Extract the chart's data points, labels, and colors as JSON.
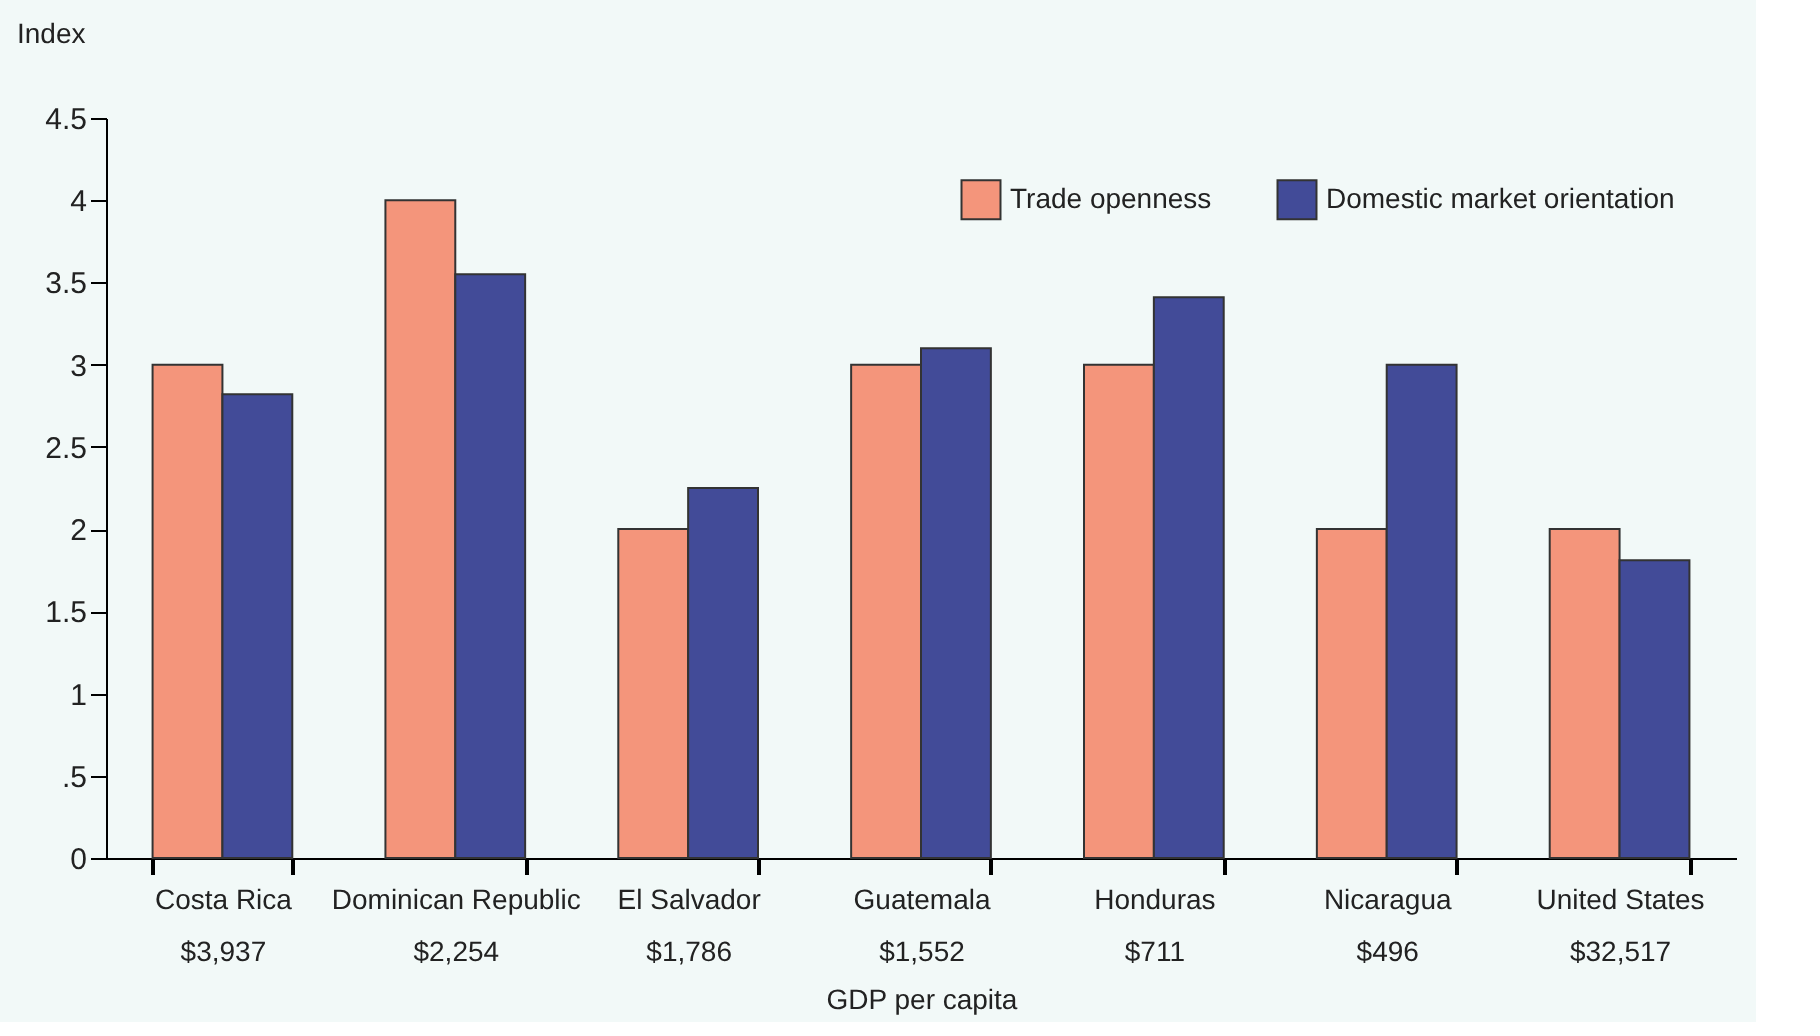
{
  "chart_data": {
    "type": "bar",
    "categories": [
      "Costa Rica\n$3,937",
      "Dominican Republic\n$2,254",
      "El Salvador\n$1,786",
      "Guatemala\n$1,552",
      "Honduras\n$711",
      "Nicaragua\n$496",
      "United States\n$32,517"
    ],
    "series": [
      {
        "name": "Trade openness",
        "color": "#f4957b",
        "values": [
          3,
          4,
          2,
          3,
          3,
          2,
          2
        ]
      },
      {
        "name": "Domestic market orientation",
        "color": "#424b98",
        "values": [
          2.82,
          3.55,
          2.25,
          3.1,
          3.41,
          3,
          1.81
        ]
      }
    ],
    "xlabel": "GDP per capita",
    "ylabel": "Index",
    "ylim": [
      0,
      4.5
    ],
    "yticks": [
      0,
      {
        "value": 0.5,
        "label": ".5"
      },
      1,
      1.5,
      2,
      2.5,
      3,
      3.5,
      4,
      4.5
    ],
    "grid": false,
    "legend": "top right"
  }
}
